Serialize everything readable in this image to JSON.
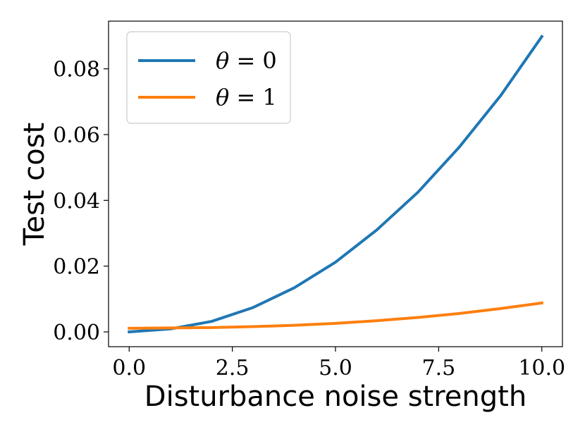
{
  "chart_data": {
    "type": "line",
    "title": "",
    "xlabel": "Disturbance noise strength",
    "ylabel": "Test cost",
    "xlim": [
      -0.5,
      10.5
    ],
    "ylim": [
      -0.0045,
      0.0945
    ],
    "xticks": [
      0.0,
      2.5,
      5.0,
      7.5,
      10.0
    ],
    "xtick_labels": [
      "0.0",
      "2.5",
      "5.0",
      "7.5",
      "10.0"
    ],
    "yticks": [
      0.0,
      0.02,
      0.04,
      0.06,
      0.08
    ],
    "ytick_labels": [
      "0.00",
      "0.02",
      "0.04",
      "0.06",
      "0.08"
    ],
    "grid": false,
    "legend_position": "top-left",
    "x": [
      0,
      1,
      2,
      3,
      4,
      5,
      6,
      7,
      8,
      9,
      10
    ],
    "series": [
      {
        "name": "θ = 0",
        "symbol": "θ",
        "rel": " = 0",
        "color": "#1f77b4",
        "values": [
          0.0,
          0.0009,
          0.0032,
          0.0074,
          0.0134,
          0.0212,
          0.031,
          0.0425,
          0.0562,
          0.0718,
          0.0898
        ]
      },
      {
        "name": "θ = 1",
        "symbol": "θ",
        "rel": " = 1",
        "color": "#ff7f0e",
        "values": [
          0.0011,
          0.0012,
          0.0013,
          0.0016,
          0.002,
          0.0026,
          0.0034,
          0.0044,
          0.0056,
          0.0071,
          0.0088
        ]
      }
    ]
  }
}
